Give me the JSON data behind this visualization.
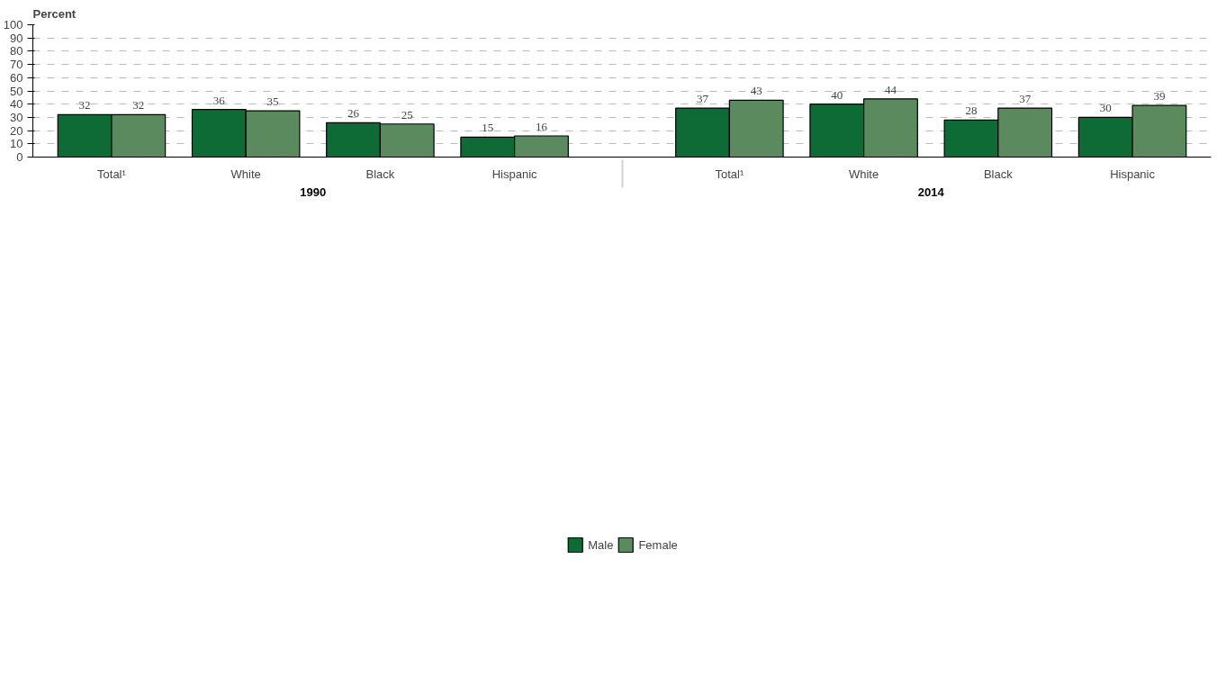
{
  "chart_data": {
    "type": "bar",
    "ylabel": "Percent",
    "categories": [
      "Total¹",
      "White",
      "Black",
      "Hispanic",
      "Total¹",
      "White",
      "Black",
      "Hispanic"
    ],
    "annotations": [
      "1990",
      "2014"
    ],
    "series": [
      {
        "name": "Male",
        "color": "#0e6b35",
        "values": [
          32,
          36,
          26,
          15,
          37,
          40,
          28,
          30
        ]
      },
      {
        "name": "Female",
        "color": "#5a8a5e",
        "values": [
          32,
          35,
          25,
          16,
          43,
          44,
          37,
          39
        ]
      }
    ],
    "ylim": [
      0,
      100
    ],
    "yticks": [
      0,
      10,
      20,
      30,
      40,
      50,
      60,
      70,
      80,
      90,
      100
    ],
    "grid": "y",
    "legend": "bottom",
    "data_labels": true
  }
}
